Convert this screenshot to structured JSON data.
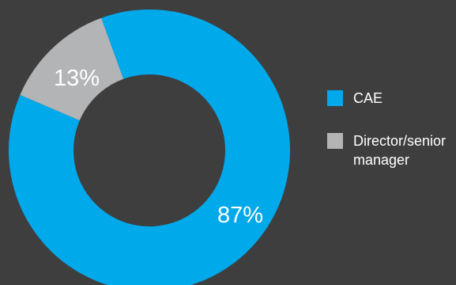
{
  "chart_data": {
    "type": "pie",
    "donut": true,
    "slices": [
      {
        "label": "CAE",
        "value": 87,
        "value_label": "87%",
        "color": "#00a9ea"
      },
      {
        "label": "Director/senior manager",
        "value": 13,
        "value_label": "13%",
        "color": "#b3b4b6"
      }
    ],
    "legend_position": "right"
  },
  "colors": {
    "background": "#3e3e3f"
  }
}
